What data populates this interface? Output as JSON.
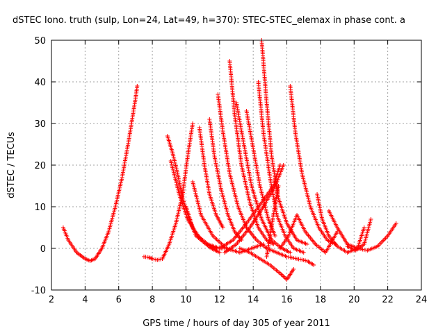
{
  "chart_data": {
    "type": "scatter",
    "title": "dSTEC Iono. truth (sulp, Lon=24, Lat=49, h=370): STEC-STEC_elemax in phase cont. a",
    "xlabel": "GPS time / hours of day 305 of year 2011",
    "ylabel": "dSTEC  / TECUs",
    "xlim": [
      2,
      24
    ],
    "ylim": [
      -10,
      50
    ],
    "xticks": [
      "2",
      "4",
      "6",
      "8",
      "10",
      "12",
      "14",
      "16",
      "18",
      "20",
      "22",
      "24"
    ],
    "yticks": [
      "-10",
      "0",
      "10",
      "20",
      "30",
      "40",
      "50"
    ],
    "grid": true,
    "marker": "+",
    "color": "#ff0000",
    "series": [
      {
        "x": [
          2.7,
          3.0,
          3.5,
          4.0,
          4.3,
          4.6,
          5.0,
          5.4,
          5.8,
          6.2,
          6.6,
          7.0,
          7.1
        ],
        "values": [
          5,
          2,
          -1,
          -2.5,
          -3,
          -2.5,
          0,
          4,
          10,
          17,
          26,
          36,
          39
        ]
      },
      {
        "x": [
          7.5,
          7.8,
          8.0,
          8.3,
          8.6
        ],
        "values": [
          -2,
          -2.2,
          -2.5,
          -2.8,
          -2.5
        ]
      },
      {
        "x": [
          8.6,
          9.0,
          9.4,
          9.8,
          10.1,
          10.4
        ],
        "values": [
          -2.5,
          1,
          6,
          13,
          22,
          30
        ]
      },
      {
        "x": [
          8.9,
          9.2,
          9.5,
          9.8,
          10.2,
          10.6,
          11.2,
          11.8,
          12.3
        ],
        "values": [
          27,
          23,
          18,
          12,
          7,
          3,
          1,
          0,
          0
        ]
      },
      {
        "x": [
          9.1,
          9.6,
          10.1,
          10.7,
          11.3,
          12.0,
          12.8,
          13.6,
          14.5,
          15.2,
          15.6
        ],
        "values": [
          21,
          13,
          7,
          3,
          1,
          0,
          2,
          6,
          11,
          15,
          20
        ]
      },
      {
        "x": [
          10.0,
          10.4,
          10.9,
          11.5,
          12.0
        ],
        "values": [
          10,
          5,
          2,
          0,
          -1
        ]
      },
      {
        "x": [
          10.8,
          11.1,
          11.4,
          11.8,
          12.2
        ],
        "values": [
          29,
          20,
          13,
          8,
          5
        ]
      },
      {
        "x": [
          10.4,
          10.9,
          11.6,
          12.4,
          13.2,
          13.9,
          14.6
        ],
        "values": [
          16,
          8,
          3,
          0,
          -1,
          0,
          1
        ]
      },
      {
        "x": [
          11.4,
          11.7,
          12.1,
          12.5,
          12.9,
          13.3
        ],
        "values": [
          31,
          22,
          14,
          8,
          4,
          2
        ]
      },
      {
        "x": [
          11.9,
          12.2,
          12.6,
          13.1,
          13.6,
          14.2,
          14.8,
          15.4,
          16.0,
          16.6,
          17.2,
          17.6
        ],
        "values": [
          37,
          28,
          18,
          10,
          5,
          2,
          0,
          -1,
          -2,
          -2.5,
          -3,
          -4
        ]
      },
      {
        "x": [
          12.6,
          12.9,
          13.3,
          13.8,
          14.3,
          14.8,
          15.2
        ],
        "values": [
          45,
          32,
          20,
          11,
          5,
          2,
          1
        ]
      },
      {
        "x": [
          13.0,
          13.4,
          13.9,
          14.5,
          15.1,
          15.7,
          16.2
        ],
        "values": [
          35,
          26,
          15,
          7,
          2,
          0,
          -1
        ]
      },
      {
        "x": [
          13.6,
          14.0,
          14.4,
          14.9,
          15.3
        ],
        "values": [
          33,
          24,
          15,
          7,
          3
        ]
      },
      {
        "x": [
          13.2,
          13.8,
          14.4,
          15.0,
          15.6,
          16.0,
          16.4
        ],
        "values": [
          0,
          -1,
          -2.5,
          -4,
          -6,
          -7.5,
          -5
        ]
      },
      {
        "x": [
          14.3,
          14.6,
          15.0,
          15.4,
          15.9,
          16.4,
          17.0
        ],
        "values": [
          40,
          28,
          17,
          8,
          3,
          0,
          -1
        ]
      },
      {
        "x": [
          14.5,
          14.8,
          15.1,
          15.5,
          16.0,
          16.6,
          17.2
        ],
        "values": [
          50,
          35,
          22,
          12,
          6,
          2,
          1
        ]
      },
      {
        "x": [
          12.3,
          13.0,
          13.8,
          14.6,
          15.3,
          15.8
        ],
        "values": [
          -1,
          1,
          5,
          10,
          15,
          20
        ]
      },
      {
        "x": [
          14.8,
          15.0,
          15.2,
          15.5
        ],
        "values": [
          -2,
          3,
          8,
          15
        ]
      },
      {
        "x": [
          16.2,
          16.5,
          16.9,
          17.4,
          17.9,
          18.4,
          18.9
        ],
        "values": [
          39,
          28,
          18,
          10,
          5,
          2,
          1
        ]
      },
      {
        "x": [
          15.6,
          16.1,
          16.6,
          17.1,
          17.7,
          18.3,
          19.0
        ],
        "values": [
          0,
          3,
          8,
          4,
          1,
          -1,
          4
        ]
      },
      {
        "x": [
          17.8,
          18.1,
          18.5,
          19.0,
          19.6,
          20.2
        ],
        "values": [
          13,
          7,
          3,
          0.5,
          -1,
          0
        ]
      },
      {
        "x": [
          18.5,
          19.0,
          19.6,
          20.2,
          20.6
        ],
        "values": [
          9,
          5,
          1,
          0,
          5
        ]
      },
      {
        "x": [
          19.6,
          20.1,
          20.6,
          21.0
        ],
        "values": [
          0.5,
          -0.5,
          1,
          7
        ]
      },
      {
        "x": [
          20.2,
          20.8,
          21.4,
          22.0,
          22.5
        ],
        "values": [
          0,
          -0.5,
          0.5,
          3,
          6
        ]
      }
    ]
  }
}
